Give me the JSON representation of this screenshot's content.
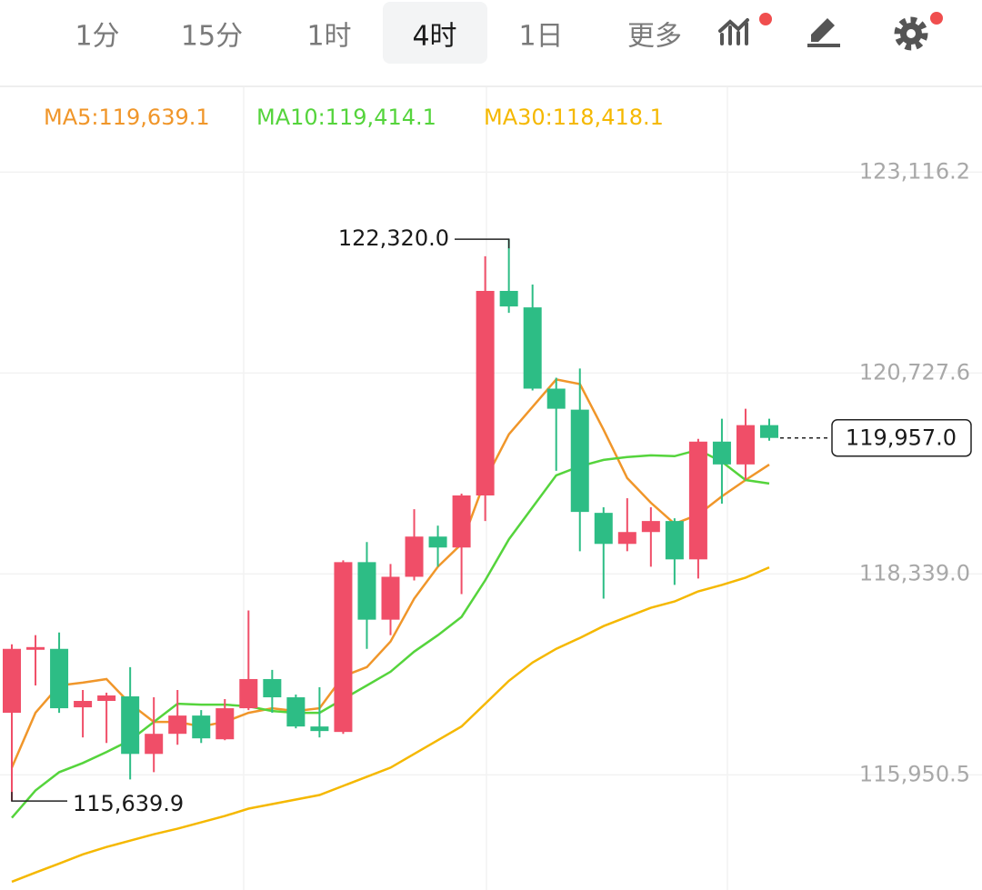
{
  "tabs": [
    "1分",
    "15分",
    "1时",
    "4时",
    "1日",
    "更多"
  ],
  "selected_tab": 3,
  "chart_data": {
    "type": "candlestick",
    "up_color": "#f04e68",
    "down_color": "#2dbd85",
    "open": [
      116689,
      117438,
      117449,
      116754,
      116830,
      116884,
      116200,
      116439,
      116656,
      116374,
      116743,
      117090,
      116873,
      116526,
      116461,
      118480,
      117796,
      118306,
      118784,
      118654,
      119273,
      121705,
      121509,
      120543,
      120293,
      119066,
      118697,
      118838,
      118969,
      118513,
      119913,
      119642,
      120109
    ],
    "high": [
      117503,
      117612,
      117644,
      116960,
      116928,
      117232,
      116873,
      116960,
      116721,
      116852,
      117905,
      117199,
      116906,
      116993,
      118502,
      118719,
      118458,
      119110,
      118914,
      119294,
      122117,
      122320.0,
      121781,
      120673,
      120782,
      119132,
      119240,
      119132,
      119001,
      119946,
      120185,
      120304,
      120185
    ],
    "low": [
      115639.9,
      117014,
      116689,
      116396,
      116330,
      115896,
      115983,
      116309,
      116330,
      116363,
      116721,
      116689,
      116504,
      116396,
      116439,
      117449,
      117612,
      118263,
      118426,
      118100,
      118969,
      121444,
      120521,
      119566,
      118610,
      118046,
      118610,
      118426,
      118209,
      118285,
      119175,
      119457,
      119924
    ],
    "close": [
      117449,
      117470,
      116743,
      116830,
      116895,
      116200,
      116439,
      116656,
      116385,
      116743,
      117090,
      116873,
      116526,
      116472,
      118480,
      117796,
      118306,
      118784,
      118654,
      119273,
      121705,
      121520,
      120543,
      120304,
      119077,
      118697,
      118838,
      118969,
      118513,
      119913,
      119642,
      120109,
      119957.0
    ],
    "max_label": "122,320.0",
    "min_label": "115,639.9",
    "last_label": "119,957.0",
    "series": [
      {
        "name": "MA5:119,639.1",
        "color": "#f0962a",
        "values": [
          116037,
          116689,
          117014,
          117047,
          117090,
          116797,
          116580,
          116580,
          116526,
          116580,
          116689,
          116743,
          116710,
          116743,
          117123,
          117232,
          117536,
          118046,
          118426,
          118697,
          119457,
          120000,
          120326,
          120652,
          120597,
          120054,
          119479,
          119186,
          118936,
          119045,
          119262,
          119457,
          119639.1
        ]
      },
      {
        "name": "MA10:119,414.1",
        "color": "#55d43c",
        "values": [
          115440,
          115766,
          115983,
          116092,
          116222,
          116363,
          116580,
          116797,
          116786,
          116786,
          116765,
          116710,
          116689,
          116689,
          116852,
          117014,
          117177,
          117416,
          117612,
          117829,
          118263,
          118752,
          119132,
          119512,
          119620,
          119696,
          119729,
          119750,
          119740,
          119816,
          119674,
          119457,
          119414.1
        ]
      },
      {
        "name": "MA30:118,418.1",
        "color": "#f5b800",
        "values": [
          114680,
          114789,
          114897,
          115006,
          115093,
          115169,
          115245,
          115310,
          115386,
          115462,
          115549,
          115603,
          115657,
          115712,
          115820,
          115929,
          116037,
          116200,
          116363,
          116526,
          116797,
          117069,
          117286,
          117449,
          117579,
          117720,
          117829,
          117937,
          118013,
          118133,
          118209,
          118296,
          118418.1
        ]
      }
    ],
    "ylim": [
      114582,
      124126
    ],
    "yticks": [
      {
        "value": 115950.5,
        "label": "115,950.5"
      },
      {
        "value": 118339.0,
        "label": "118,339.0"
      },
      {
        "value": 120727.6,
        "label": "120,727.6"
      },
      {
        "value": 123116.2,
        "label": "123,116.2"
      }
    ],
    "grid": true
  }
}
